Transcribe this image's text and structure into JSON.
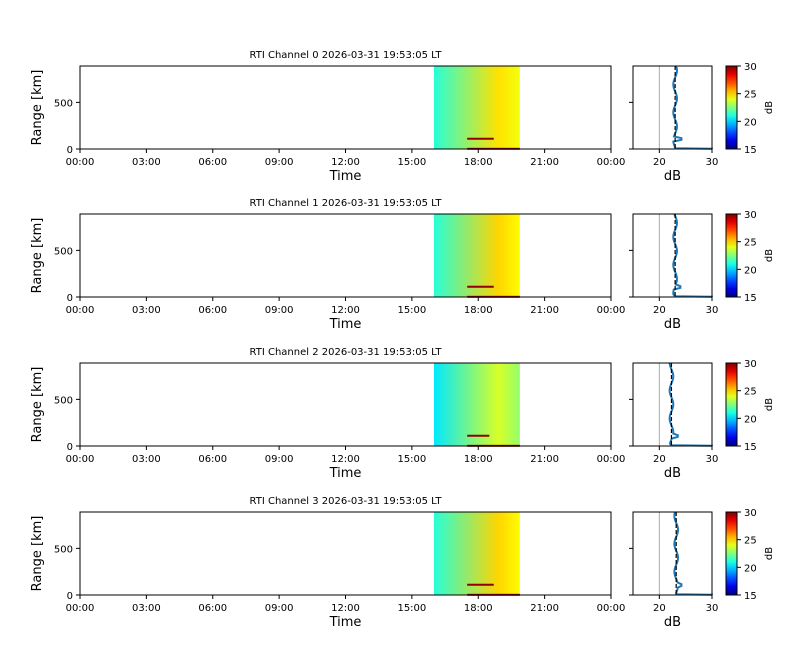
{
  "chart_data": {
    "type": "heatmap",
    "x_ticks": [
      "00:00",
      "03:00",
      "06:00",
      "09:00",
      "12:00",
      "15:00",
      "18:00",
      "21:00",
      "00:00"
    ],
    "x_range_hours": [
      0,
      24
    ],
    "y_ticks": [
      0,
      500
    ],
    "y_range_km": [
      0,
      890
    ],
    "xlabel": "Time",
    "ylabel": "Range [km]",
    "profile_xlabel": "dB",
    "profile_x_range": [
      15,
      30
    ],
    "profile_x_ticks": [
      20,
      30
    ],
    "profile_ref_line_db": 20,
    "colorbar": {
      "label": "dB",
      "range": [
        15,
        30
      ],
      "ticks": [
        15,
        20,
        25,
        30
      ]
    },
    "colors": {
      "profile": "#1f77b4",
      "ref_line": "#aaaaaa",
      "mean_line": "#000000"
    },
    "panels": [
      {
        "title": "RTI Channel 0 2026-03-31 19:53:05 LT",
        "data_start_h": 16.0,
        "data_end_h": 19.88,
        "db_start": 21.2,
        "db_mid": 24.8,
        "db_end": 24.2,
        "profile_mean_db": 23.0,
        "streaks": [
          {
            "range_km": 110,
            "from_h": 17.5,
            "to_h": 18.7
          },
          {
            "range_km": 2,
            "from_h": 17.5,
            "to_h": 19.88
          }
        ],
        "profile_peak_db": 30,
        "profile_bump_db": 24.2
      },
      {
        "title": "RTI Channel 1 2026-03-31 19:53:05 LT",
        "data_start_h": 16.0,
        "data_end_h": 19.88,
        "db_start": 21.2,
        "db_mid": 25.0,
        "db_end": 24.4,
        "profile_mean_db": 23.0,
        "streaks": [
          {
            "range_km": 110,
            "from_h": 17.5,
            "to_h": 18.7
          },
          {
            "range_km": 2,
            "from_h": 17.5,
            "to_h": 19.88
          }
        ],
        "profile_peak_db": 30,
        "profile_bump_db": 24.0
      },
      {
        "title": "RTI Channel 2 2026-03-31 19:53:05 LT",
        "data_start_h": 16.0,
        "data_end_h": 19.88,
        "db_start": 20.3,
        "db_mid": 23.8,
        "db_end": 22.8,
        "profile_mean_db": 22.3,
        "streaks": [
          {
            "range_km": 110,
            "from_h": 17.5,
            "to_h": 18.5
          },
          {
            "range_km": 2,
            "from_h": 17.5,
            "to_h": 19.88
          }
        ],
        "profile_peak_db": 30,
        "profile_bump_db": 23.5
      },
      {
        "title": "RTI Channel 3 2026-03-31 19:53:05 LT",
        "data_start_h": 16.0,
        "data_end_h": 19.88,
        "db_start": 21.2,
        "db_mid": 25.0,
        "db_end": 24.4,
        "profile_mean_db": 23.2,
        "streaks": [
          {
            "range_km": 110,
            "from_h": 17.5,
            "to_h": 18.7
          },
          {
            "range_km": 2,
            "from_h": 17.5,
            "to_h": 19.88
          }
        ],
        "profile_peak_db": 30,
        "profile_bump_db": 24.2
      }
    ]
  }
}
